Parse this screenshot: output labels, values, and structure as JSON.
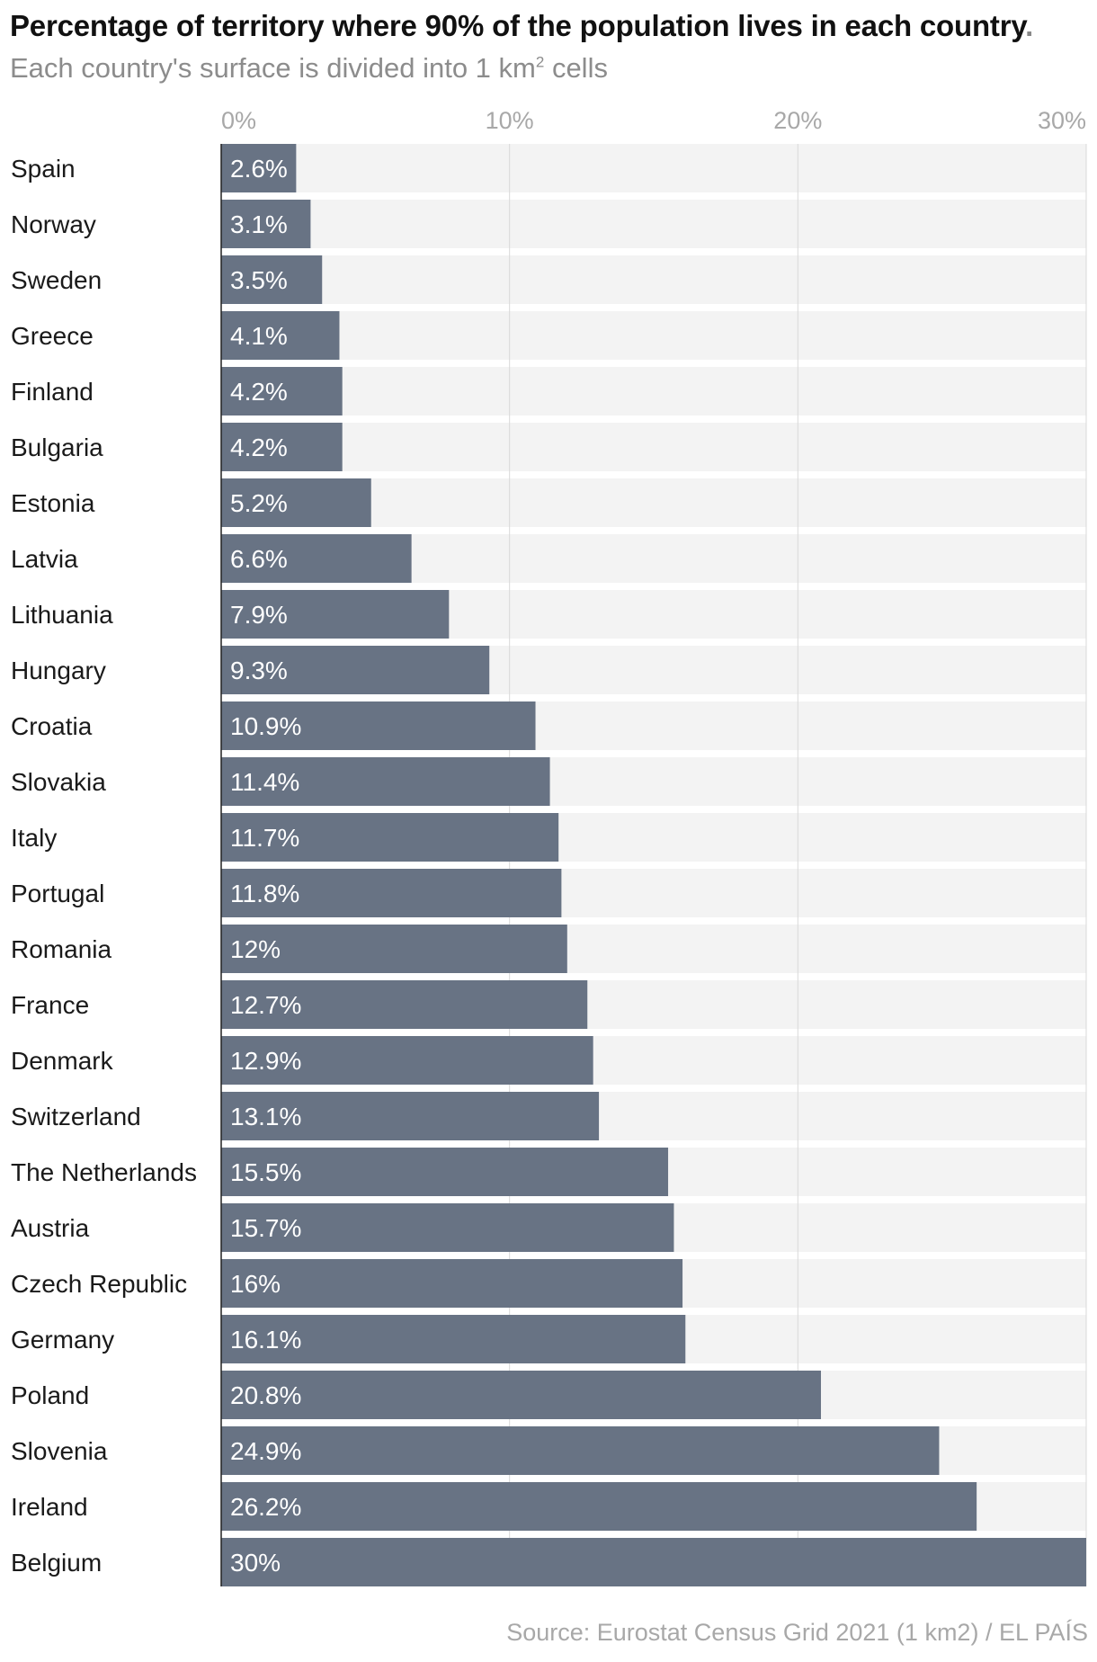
{
  "title": "Percentage of territory where 90% of the population lives in each country",
  "title_end": ".",
  "subtitle": "Each country's surface is divided into 1 km",
  "subtitle_sup": "2",
  "subtitle_end": " cells",
  "source": "Source: Eurostat Census Grid 2021 (1 km2) / EL PAÍS",
  "colors": {
    "bar": "#687384",
    "track": "#f3f3f3",
    "grid": "#d9d9d9",
    "bar_label": "#ffffff",
    "category_label": "#1a1a1a",
    "tick_label": "#a8a8a8"
  },
  "chart_data": {
    "type": "bar",
    "orientation": "horizontal",
    "xlim": [
      0,
      30
    ],
    "ticks": [
      0,
      10,
      20,
      30
    ],
    "tick_labels": [
      "0%",
      "10%",
      "20%",
      "30%"
    ],
    "grid": true,
    "categories": [
      "Spain",
      "Norway",
      "Sweden",
      "Greece",
      "Finland",
      "Bulgaria",
      "Estonia",
      "Latvia",
      "Lithuania",
      "Hungary",
      "Croatia",
      "Slovakia",
      "Italy",
      "Portugal",
      "Romania",
      "France",
      "Denmark",
      "Switzerland",
      "The Netherlands",
      "Austria",
      "Czech Republic",
      "Germany",
      "Poland",
      "Slovenia",
      "Ireland",
      "Belgium"
    ],
    "values": [
      2.6,
      3.1,
      3.5,
      4.1,
      4.2,
      4.2,
      5.2,
      6.6,
      7.9,
      9.3,
      10.9,
      11.4,
      11.7,
      11.8,
      12,
      12.7,
      12.9,
      13.1,
      15.5,
      15.7,
      16,
      16.1,
      20.8,
      24.9,
      26.2,
      30
    ],
    "labels": [
      "2.6%",
      "3.1%",
      "3.5%",
      "4.1%",
      "4.2%",
      "4.2%",
      "5.2%",
      "6.6%",
      "7.9%",
      "9.3%",
      "10.9%",
      "11.4%",
      "11.7%",
      "11.8%",
      "12%",
      "12.7%",
      "12.9%",
      "13.1%",
      "15.5%",
      "15.7%",
      "16%",
      "16.1%",
      "20.8%",
      "24.9%",
      "26.2%",
      "30%"
    ]
  }
}
